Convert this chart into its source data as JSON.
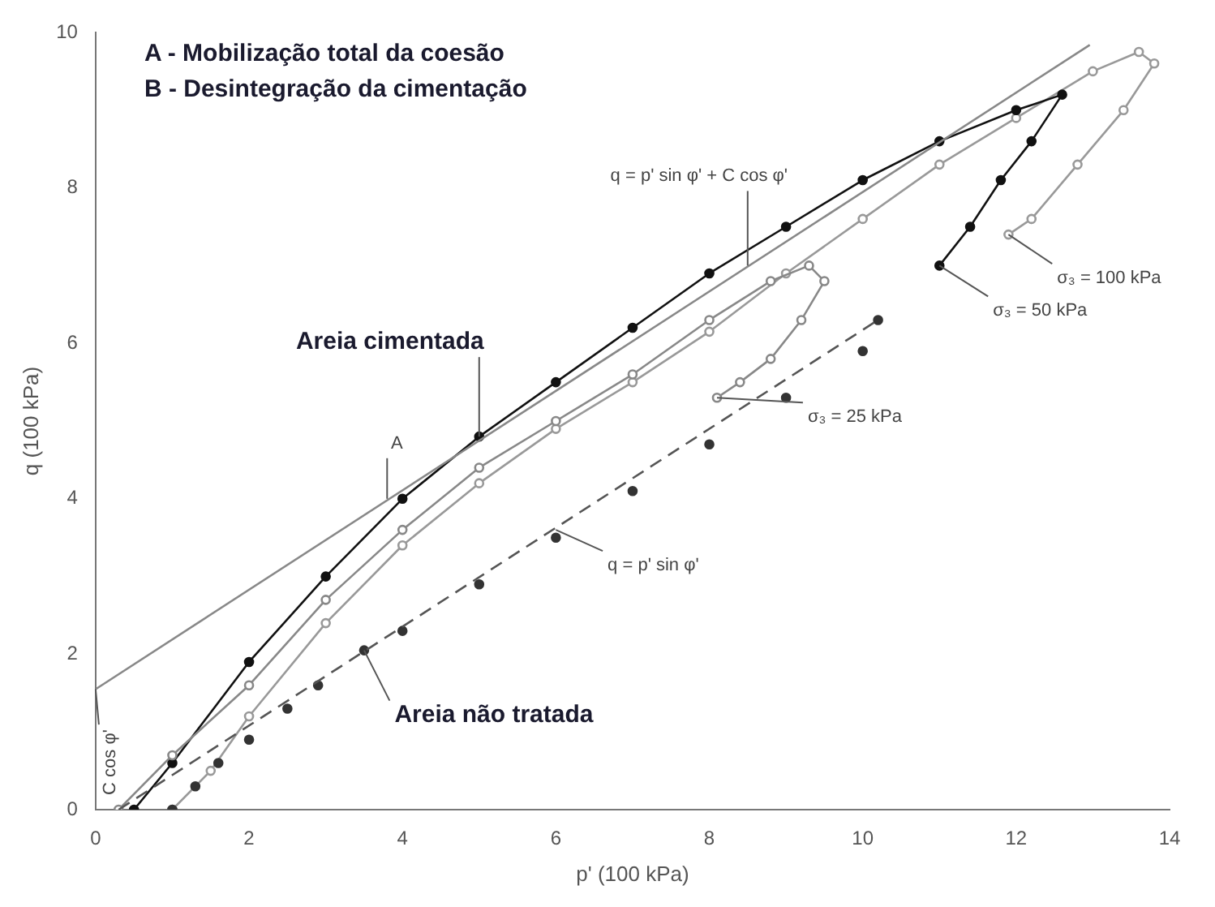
{
  "chart_data": {
    "type": "line",
    "xlabel": "p' (100 kPa)",
    "ylabel": "q (100 kPa)",
    "xlim": [
      0,
      14
    ],
    "ylim": [
      0,
      10
    ],
    "xticks": [
      0,
      2,
      4,
      6,
      8,
      10,
      12,
      14
    ],
    "yticks": [
      0,
      2,
      4,
      6,
      8,
      10
    ],
    "grid": false,
    "legend": false,
    "series": [
      {
        "type": "line",
        "color": "#888888",
        "marker": "none",
        "line_style": "solid",
        "x": [
          0,
          12.96
        ],
        "values": [
          1.55,
          9.84
        ]
      },
      {
        "type": "line",
        "color": "#555555",
        "marker": "none",
        "line_style": "dashed",
        "x": [
          0.3,
          10.2
        ],
        "values": [
          0,
          6.3
        ]
      },
      {
        "type": "scatter",
        "color": "#333333",
        "marker": "circle",
        "x": [
          1,
          1.3,
          1.6,
          2,
          2.5,
          2.9,
          3.5,
          4,
          5,
          6,
          7,
          8,
          9,
          10,
          10.2
        ],
        "values": [
          0,
          0.3,
          0.6,
          0.9,
          1.3,
          1.6,
          2.05,
          2.3,
          2.9,
          3.5,
          4.1,
          4.7,
          5.3,
          5.9,
          6.3
        ]
      },
      {
        "type": "line",
        "color": "#888888",
        "marker": "circle",
        "line_style": "solid",
        "x": [
          0.3,
          1,
          2,
          3,
          4,
          5,
          6,
          7,
          8,
          8.8,
          9.3,
          9.5,
          9.2,
          8.8,
          8.4,
          8.1
        ],
        "values": [
          0,
          0.7,
          1.6,
          2.7,
          3.6,
          4.4,
          5,
          5.6,
          6.3,
          6.8,
          7,
          6.8,
          6.3,
          5.8,
          5.5,
          5.3
        ]
      },
      {
        "type": "line",
        "color": "#111111",
        "marker": "circle",
        "line_style": "solid",
        "x": [
          0.5,
          1,
          2,
          3,
          4,
          5,
          6,
          7,
          8,
          9,
          10,
          11,
          12,
          12.6,
          12.2,
          11.8,
          11.4,
          11
        ],
        "values": [
          0,
          0.6,
          1.9,
          3,
          4,
          4.8,
          5.5,
          6.2,
          6.9,
          7.5,
          8.1,
          8.6,
          9,
          9.2,
          8.6,
          8.1,
          7.5,
          7
        ]
      },
      {
        "type": "line",
        "color": "#999999",
        "marker": "circle",
        "line_style": "solid",
        "x": [
          1,
          1.5,
          2,
          3,
          4,
          5,
          6,
          7,
          8,
          9,
          10,
          11,
          12,
          13,
          13.6,
          13.8,
          13.4,
          12.8,
          12.2,
          11.9
        ],
        "values": [
          0,
          0.5,
          1.2,
          2.4,
          3.4,
          4.2,
          4.9,
          5.5,
          6.15,
          6.9,
          7.6,
          8.3,
          8.9,
          9.5,
          9.75,
          9.6,
          9,
          8.3,
          7.6,
          7.4
        ]
      }
    ],
    "annotations": [
      "A - Mobilização total da coesão",
      "B - Desintegração da cimentação",
      {
        "text": "Areia cimentada",
        "x": 5,
        "y": 4.8
      },
      {
        "text": "Areia não tratada",
        "x": 3.5,
        "y": 2.05
      },
      {
        "text": "q = p' sin φ' + C cos φ'",
        "x": 8.5,
        "y": 7.0
      },
      {
        "text": "q = p' sin φ'",
        "x": 6,
        "y": 3.6
      },
      {
        "text": "σ₃ = 25 kPa",
        "x": 8.1,
        "y": 5.3
      },
      {
        "text": "σ₃ = 50 kPa",
        "x": 11,
        "y": 7
      },
      {
        "text": "σ₃ = 100 kPa",
        "x": 11.9,
        "y": 7.4
      },
      {
        "text": "A",
        "x": 3.8,
        "y": 4.0
      },
      {
        "text": "C cos φ'",
        "x": 0,
        "y": 1.55
      }
    ]
  }
}
